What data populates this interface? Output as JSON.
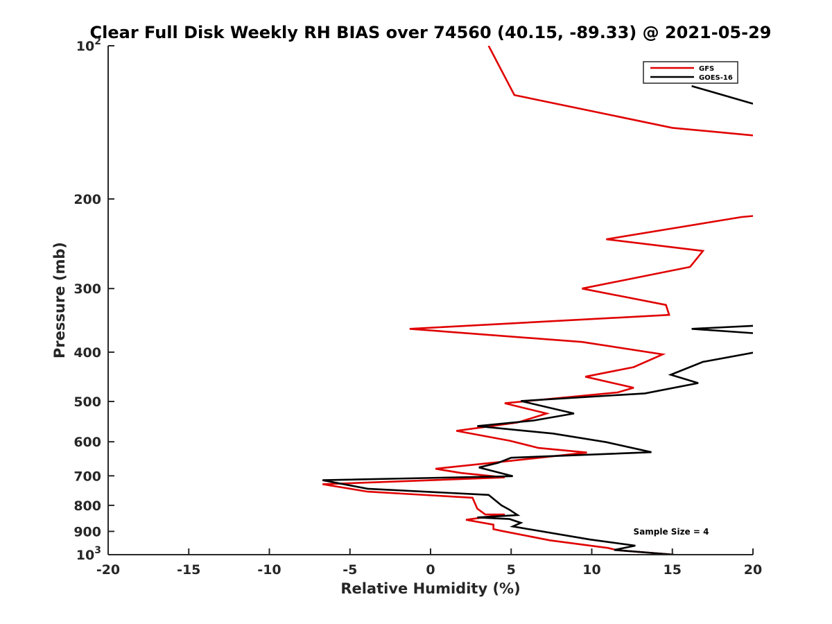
{
  "chart_data": {
    "type": "line",
    "title": "Clear Full Disk Weekly RH BIAS over 74560 (40.15, -89.33) @ 2021-05-29",
    "xlabel": "Relative Humidity (%)",
    "ylabel": "Pressure (mb)",
    "xlim": [
      -20,
      20
    ],
    "ylim": [
      100,
      1000
    ],
    "yscale": "log",
    "yreversed": true,
    "grid": false,
    "legend_position": "top-right",
    "x_ticks": [
      "-20",
      "-15",
      "-10",
      "-5",
      "0",
      "5",
      "10",
      "15",
      "20"
    ],
    "y_ticks": [
      {
        "value": 100,
        "base": "10",
        "exp": "2"
      },
      {
        "value": 200,
        "base": "200",
        "exp": ""
      },
      {
        "value": 300,
        "base": "300",
        "exp": ""
      },
      {
        "value": 400,
        "base": "400",
        "exp": ""
      },
      {
        "value": 500,
        "base": "500",
        "exp": ""
      },
      {
        "value": 600,
        "base": "600",
        "exp": ""
      },
      {
        "value": 700,
        "base": "700",
        "exp": ""
      },
      {
        "value": 800,
        "base": "800",
        "exp": ""
      },
      {
        "value": 900,
        "base": "900",
        "exp": ""
      },
      {
        "value": 1000,
        "base": "10",
        "exp": "3"
      }
    ],
    "annotation": "Sample Size = 4",
    "series": [
      {
        "name": "GFS",
        "color": "#e00000",
        "points": [
          [
            3.6,
            100
          ],
          [
            5.2,
            125
          ],
          [
            15.0,
            145
          ],
          [
            20.0,
            150
          ],
          [
            null,
            null
          ],
          [
            20.0,
            216
          ],
          [
            19.3,
            217
          ],
          [
            10.9,
            240
          ],
          [
            16.9,
            253
          ],
          [
            16.1,
            272
          ],
          [
            9.4,
            300
          ],
          [
            14.6,
            323
          ],
          [
            14.8,
            338
          ],
          [
            -1.3,
            360
          ],
          [
            9.4,
            382
          ],
          [
            14.4,
            404
          ],
          [
            12.6,
            428
          ],
          [
            9.6,
            447
          ],
          [
            12.6,
            470
          ],
          [
            11.6,
            480
          ],
          [
            4.6,
            504
          ],
          [
            7.2,
            528
          ],
          [
            5.4,
            550
          ],
          [
            1.6,
            571
          ],
          [
            4.9,
            597
          ],
          [
            6.7,
            617
          ],
          [
            9.7,
            630
          ],
          [
            4.2,
            658
          ],
          [
            0.3,
            678
          ],
          [
            1.9,
            691
          ],
          [
            4.6,
            705
          ],
          [
            -6.7,
            727
          ],
          [
            -3.9,
            752
          ],
          [
            2.6,
            773
          ],
          [
            2.9,
            812
          ],
          [
            3.4,
            834
          ],
          [
            4.6,
            834
          ],
          [
            2.2,
            854
          ],
          [
            3.9,
            873
          ],
          [
            3.9,
            891
          ],
          [
            4.4,
            898
          ],
          [
            7.4,
            937
          ],
          [
            11.0,
            970
          ],
          [
            11.6,
            980
          ],
          [
            15.1,
            1000
          ]
        ]
      },
      {
        "name": "GOES-16",
        "color": "#000000",
        "points": [
          [
            null,
            null
          ],
          [
            16.2,
            120
          ],
          [
            20.0,
            130
          ],
          [
            null,
            null
          ],
          [
            20.0,
            355
          ],
          [
            16.2,
            360
          ],
          [
            20.0,
            367
          ],
          [
            null,
            null
          ],
          [
            20.0,
            401
          ],
          [
            16.9,
            418
          ],
          [
            14.9,
            443
          ],
          [
            16.6,
            460
          ],
          [
            13.3,
            482
          ],
          [
            5.6,
            499
          ],
          [
            8.9,
            528
          ],
          [
            6.4,
            545
          ],
          [
            2.9,
            559
          ],
          [
            7.6,
            578
          ],
          [
            10.9,
            601
          ],
          [
            13.7,
            629
          ],
          [
            5.0,
            645
          ],
          [
            4.2,
            660
          ],
          [
            3.0,
            674
          ],
          [
            5.1,
            701
          ],
          [
            -6.7,
            714
          ],
          [
            -3.9,
            742
          ],
          [
            3.6,
            763
          ],
          [
            4.4,
            800
          ],
          [
            4.9,
            816
          ],
          [
            5.4,
            836
          ],
          [
            2.9,
            845
          ],
          [
            4.9,
            851
          ],
          [
            5.6,
            866
          ],
          [
            5.1,
            880
          ],
          [
            9.9,
            934
          ],
          [
            12.7,
            960
          ],
          [
            11.4,
            979
          ],
          [
            15.1,
            1000
          ]
        ]
      }
    ]
  }
}
